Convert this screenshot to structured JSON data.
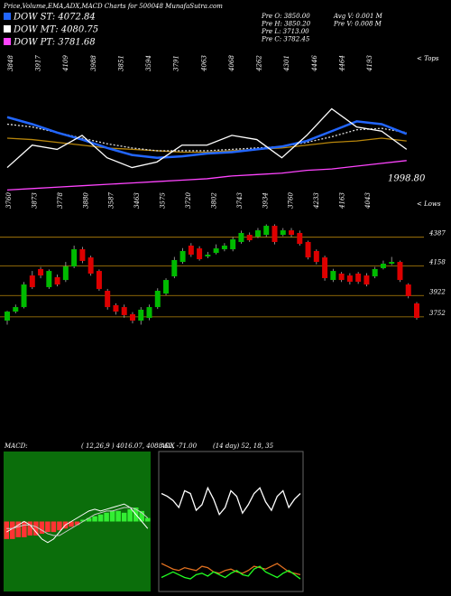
{
  "header": {
    "title": "Price,Volume,EMA,ADX,MACD Charts for 500048  MunafaSutra.com",
    "info": [
      "Pre O: 3850.00",
      "Pre H: 3850.20",
      "Pre L: 3713.00",
      "Pre C: 3782.45",
      "Avg V: 0.001 M",
      "Pre V: 0.008 M"
    ]
  },
  "chart_data": [
    {
      "type": "line",
      "x": [
        0,
        3,
        6,
        9,
        12,
        15,
        18,
        21,
        24,
        27,
        30,
        33,
        36,
        39,
        42,
        45,
        48
      ],
      "xlim": [
        0,
        49
      ],
      "ylim": [
        0,
        100
      ],
      "annotation": "1998.80",
      "tops_label": "< Tops",
      "lows_label": "< Lows",
      "tops": [
        3848,
        3917,
        4109,
        3988,
        3851,
        3594,
        3791,
        4063,
        4068,
        4262,
        4301,
        4446,
        4464,
        4193
      ],
      "lows": [
        3760,
        3873,
        3778,
        3880,
        3587,
        3463,
        3575,
        3720,
        3802,
        3743,
        3934,
        3760,
        4233,
        4163,
        4043
      ],
      "legend": [
        {
          "label": "DOW ST: 4072.84",
          "color": "#2266ff"
        },
        {
          "label": "DOW MT: 4080.75",
          "color": "#ffffff"
        },
        {
          "label": "DOW PT: 3781.68",
          "color": "#ff44ff"
        }
      ],
      "series": [
        {
          "color": "#ff44ff",
          "values": [
            3,
            4,
            5,
            6,
            7,
            8,
            9,
            10,
            11,
            13,
            14,
            15,
            17,
            18,
            20,
            22,
            24
          ]
        },
        {
          "color": "#b8860b",
          "values": [
            40,
            39,
            37,
            35,
            33,
            32,
            31,
            30,
            30,
            31,
            32,
            33,
            35,
            37,
            38,
            40,
            38
          ]
        },
        {
          "color": "#dddddd",
          "values": [
            50,
            48,
            44,
            40,
            36,
            33,
            31,
            31,
            31,
            32,
            33,
            34,
            37,
            41,
            46,
            47,
            44
          ]
        },
        {
          "color": "#2266ff",
          "values": [
            55,
            50,
            44,
            39,
            33,
            28,
            26,
            27,
            29,
            30,
            32,
            34,
            38,
            45,
            52,
            50,
            43
          ]
        },
        {
          "color": "#ffffff",
          "values": [
            19,
            35,
            32,
            42,
            26,
            19,
            23,
            35,
            35,
            42,
            39,
            26,
            42,
            61,
            48,
            45,
            32
          ]
        }
      ]
    },
    {
      "type": "candlestick",
      "ylim": [
        3600,
        4500
      ],
      "yticks": [
        4387,
        4158,
        3922,
        3752
      ],
      "up_color": "#00bb00",
      "down_color": "#dd0000",
      "level_color": "#b8860b",
      "open": [
        3722,
        3794,
        3830,
        4082,
        4133,
        3989,
        4068,
        4046,
        4154,
        4291,
        4226,
        4118,
        3960,
        3845,
        3830,
        3773,
        3722,
        3744,
        3830,
        3938,
        4075,
        4190,
        4320,
        4298,
        4234,
        4262,
        4291,
        4291,
        4349,
        4406,
        4392,
        4406,
        4478,
        4406,
        4442,
        4421,
        4349,
        4277,
        4226,
        4046,
        4097,
        4082,
        4097,
        4082,
        4075,
        4140,
        4176,
        4190,
        4010,
        3859
      ],
      "high": [
        3800,
        3850,
        4030,
        4118,
        4150,
        4130,
        4090,
        4190,
        4320,
        4310,
        4240,
        4130,
        3975,
        3860,
        3850,
        3790,
        3830,
        3850,
        3980,
        4060,
        4230,
        4300,
        4340,
        4315,
        4270,
        4330,
        4340,
        4390,
        4440,
        4425,
        4460,
        4490,
        4490,
        4460,
        4460,
        4440,
        4360,
        4290,
        4240,
        4135,
        4110,
        4100,
        4110,
        4100,
        4150,
        4200,
        4230,
        4200,
        4020,
        3870
      ],
      "low": [
        3690,
        3780,
        3820,
        3974,
        4060,
        3975,
        3995,
        4030,
        4140,
        4180,
        4080,
        3960,
        3810,
        3770,
        3745,
        3700,
        3690,
        3725,
        3815,
        3925,
        4060,
        4175,
        4230,
        4200,
        4220,
        4250,
        4275,
        4275,
        4335,
        4350,
        4380,
        4390,
        4330,
        4395,
        4390,
        4320,
        4210,
        4170,
        4040,
        4030,
        4030,
        4010,
        4015,
        3995,
        4060,
        4130,
        4165,
        4030,
        3900,
        3730
      ],
      "close": [
        3794,
        3830,
        4010,
        3989,
        4082,
        4118,
        4010,
        4154,
        4291,
        4198,
        4097,
        3974,
        3830,
        3794,
        3766,
        3722,
        3809,
        3830,
        3960,
        4046,
        4205,
        4277,
        4248,
        4212,
        4248,
        4298,
        4320,
        4370,
        4421,
        4363,
        4442,
        4478,
        4349,
        4442,
        4406,
        4334,
        4226,
        4190,
        4061,
        4118,
        4046,
        4032,
        4032,
        4010,
        4133,
        4176,
        4190,
        4046,
        3917,
        3744
      ]
    },
    {
      "type": "macd",
      "label": "MACD:",
      "params": "( 12,26,9 ) 4016.07, 4088.62, -71.00",
      "ylim": [
        -2,
        2
      ],
      "background": "#0b6e0b",
      "pos_color": "#33ee33",
      "neg_color": "#ff3333",
      "histogram": [
        -0.5,
        -0.5,
        -0.45,
        -0.45,
        -0.4,
        -0.4,
        -0.35,
        -0.3,
        -0.3,
        -0.25,
        -0.2,
        -0.15,
        -0.1,
        0.05,
        0.1,
        0.15,
        0.2,
        0.25,
        0.3,
        0.3,
        0.25,
        0.35,
        0.4,
        0.3,
        0.1
      ],
      "series": [
        {
          "color": "#ffffff",
          "values": [
            -0.3,
            -0.2,
            -0.1,
            0,
            -0.1,
            -0.3,
            -0.5,
            -0.6,
            -0.5,
            -0.3,
            -0.1,
            0,
            0.1,
            0.2,
            0.3,
            0.35,
            0.3,
            0.35,
            0.4,
            0.45,
            0.5,
            0.4,
            0.2,
            0,
            -0.2
          ]
        },
        {
          "color": "#cccccc",
          "values": [
            -0.2,
            -0.2,
            -0.15,
            -0.1,
            -0.1,
            -0.15,
            -0.25,
            -0.35,
            -0.4,
            -0.4,
            -0.3,
            -0.2,
            -0.1,
            0,
            0.1,
            0.2,
            0.25,
            0.3,
            0.3,
            0.35,
            0.4,
            0.4,
            0.35,
            0.25,
            0.1
          ]
        }
      ]
    },
    {
      "type": "line",
      "label": "ADX",
      "params": "(14 day) 52, 18, 35",
      "ylim": [
        0,
        100
      ],
      "series": [
        {
          "color": "#ffffff",
          "values": [
            70,
            68,
            65,
            60,
            72,
            70,
            58,
            62,
            74,
            66,
            55,
            60,
            72,
            68,
            56,
            62,
            70,
            74,
            64,
            58,
            68,
            72,
            60,
            66,
            70
          ]
        },
        {
          "color": "#e07020",
          "values": [
            20,
            18,
            16,
            15,
            17,
            16,
            15,
            18,
            17,
            14,
            13,
            15,
            16,
            14,
            13,
            15,
            18,
            17,
            16,
            18,
            20,
            17,
            14,
            13,
            12
          ]
        },
        {
          "color": "#22ff22",
          "values": [
            10,
            12,
            14,
            12,
            10,
            9,
            12,
            13,
            11,
            14,
            12,
            10,
            13,
            15,
            12,
            11,
            16,
            18,
            14,
            12,
            10,
            13,
            15,
            12,
            9
          ]
        }
      ]
    }
  ]
}
